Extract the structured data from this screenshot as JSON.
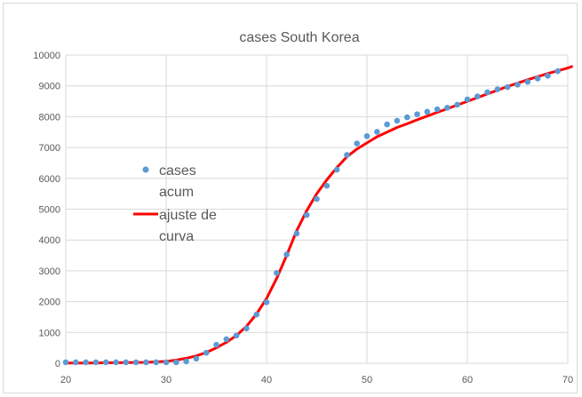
{
  "chart_data": {
    "type": "scatter",
    "title": "cases South Korea",
    "xlabel": "",
    "ylabel": "",
    "xlim": [
      20,
      70
    ],
    "ylim": [
      0,
      10000
    ],
    "x_ticks": [
      "20",
      "30",
      "40",
      "50",
      "60",
      "70"
    ],
    "y_ticks": [
      "0",
      "1000",
      "2000",
      "3000",
      "4000",
      "5000",
      "6000",
      "7000",
      "8000",
      "9000",
      "10000"
    ],
    "grid": "on",
    "legend_position": "left-middle",
    "series": [
      {
        "name": "cases acum",
        "type": "scatter",
        "color": "#5b9bd5",
        "x": [
          20,
          21,
          22,
          23,
          24,
          25,
          26,
          27,
          28,
          29,
          30,
          31,
          32,
          33,
          34,
          35,
          36,
          37,
          38,
          39,
          40,
          41,
          42,
          43,
          44,
          45,
          46,
          47,
          48,
          49,
          50,
          51,
          52,
          53,
          54,
          55,
          56,
          57,
          58,
          59,
          60,
          61,
          62,
          63,
          64,
          65,
          66,
          67,
          68,
          69
        ],
        "y": [
          30,
          30,
          30,
          30,
          30,
          30,
          30,
          30,
          30,
          30,
          30,
          30,
          60,
          150,
          340,
          600,
          780,
          900,
          1130,
          1580,
          1980,
          2930,
          3530,
          4210,
          4810,
          5330,
          5760,
          6280,
          6760,
          7130,
          7370,
          7510,
          7750,
          7870,
          7980,
          8080,
          8160,
          8240,
          8290,
          8390,
          8560,
          8660,
          8790,
          8890,
          8960,
          9040,
          9130,
          9240,
          9330,
          9480
        ]
      },
      {
        "name": "ajuste de curva",
        "type": "line",
        "color": "#ff0000",
        "x": [
          20,
          22,
          24,
          26,
          28,
          30,
          31,
          32,
          33,
          34,
          35,
          36,
          37,
          38,
          39,
          40,
          41,
          42,
          43,
          44,
          45,
          46,
          47,
          48,
          49,
          50,
          51,
          52,
          53,
          54,
          55,
          56,
          57,
          58,
          60,
          62,
          64,
          66,
          68,
          70,
          70.5
        ],
        "y": [
          10,
          10,
          15,
          20,
          30,
          60,
          100,
          160,
          240,
          350,
          500,
          680,
          900,
          1200,
          1600,
          2100,
          2750,
          3500,
          4300,
          4950,
          5500,
          5950,
          6350,
          6700,
          6950,
          7150,
          7350,
          7500,
          7650,
          7770,
          7900,
          8020,
          8140,
          8260,
          8500,
          8740,
          8980,
          9200,
          9400,
          9580,
          9640
        ]
      }
    ]
  }
}
